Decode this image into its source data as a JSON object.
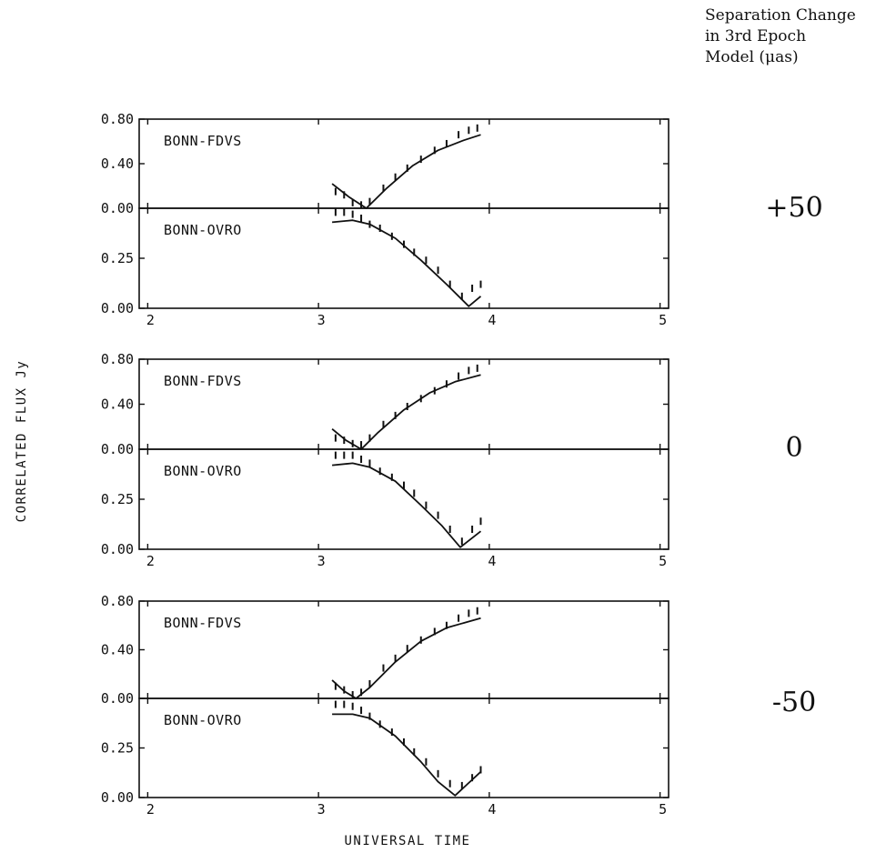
{
  "header": {
    "line1": "Separation Change",
    "line2": "in 3rd Epoch",
    "line3": "Model (μas)"
  },
  "xlabel": "UNIVERSAL TIME",
  "ylabel": "CORRELATED FLUX   Jy",
  "chart_data": {
    "type": "line",
    "x_ticks": [
      "2",
      "3",
      "4",
      "5"
    ],
    "xlim": [
      1.95,
      5.05
    ],
    "groups": [
      {
        "separation_change": "+50",
        "panels": [
          {
            "baseline": "BONN-FDVS",
            "ylim": [
              0,
              0.8
            ],
            "y_ticks": [
              "0.00",
              "0.40",
              "0.80"
            ],
            "model": {
              "x": [
                3.08,
                3.18,
                3.28,
                3.4,
                3.55,
                3.7,
                3.85,
                3.95
              ],
              "y": [
                0.22,
                0.1,
                0.0,
                0.18,
                0.38,
                0.52,
                0.61,
                0.66
              ]
            },
            "data": {
              "x": [
                3.1,
                3.15,
                3.2,
                3.25,
                3.3,
                3.38,
                3.45,
                3.52,
                3.6,
                3.68,
                3.75,
                3.82,
                3.88,
                3.93
              ],
              "y": [
                0.15,
                0.12,
                0.05,
                0.03,
                0.06,
                0.18,
                0.28,
                0.36,
                0.44,
                0.52,
                0.58,
                0.66,
                0.7,
                0.72
              ]
            }
          },
          {
            "baseline": "BONN-OVRO",
            "ylim": [
              0,
              0.5
            ],
            "y_ticks": [
              "0.00",
              "0.25"
            ],
            "model": {
              "x": [
                3.08,
                3.2,
                3.3,
                3.45,
                3.6,
                3.75,
                3.88,
                3.95
              ],
              "y": [
                0.43,
                0.44,
                0.42,
                0.35,
                0.24,
                0.12,
                0.01,
                0.06
              ]
            },
            "data": {
              "x": [
                3.1,
                3.15,
                3.2,
                3.25,
                3.3,
                3.36,
                3.43,
                3.5,
                3.56,
                3.63,
                3.7,
                3.77,
                3.84,
                3.9,
                3.95
              ],
              "y": [
                0.48,
                0.48,
                0.47,
                0.45,
                0.42,
                0.4,
                0.36,
                0.32,
                0.28,
                0.24,
                0.19,
                0.12,
                0.06,
                0.1,
                0.12
              ]
            }
          }
        ]
      },
      {
        "separation_change": "0",
        "panels": [
          {
            "baseline": "BONN-FDVS",
            "ylim": [
              0,
              0.8
            ],
            "y_ticks": [
              "0.00",
              "0.40",
              "0.80"
            ],
            "model": {
              "x": [
                3.08,
                3.16,
                3.25,
                3.35,
                3.5,
                3.65,
                3.8,
                3.95
              ],
              "y": [
                0.18,
                0.08,
                0.0,
                0.15,
                0.35,
                0.5,
                0.6,
                0.66
              ]
            },
            "data": {
              "x": [
                3.1,
                3.15,
                3.2,
                3.25,
                3.3,
                3.38,
                3.45,
                3.52,
                3.6,
                3.68,
                3.75,
                3.82,
                3.88,
                3.93
              ],
              "y": [
                0.1,
                0.08,
                0.05,
                0.04,
                0.1,
                0.22,
                0.3,
                0.38,
                0.45,
                0.52,
                0.58,
                0.65,
                0.7,
                0.72
              ]
            }
          },
          {
            "baseline": "BONN-OVRO",
            "ylim": [
              0,
              0.5
            ],
            "y_ticks": [
              "0.00",
              "0.25"
            ],
            "model": {
              "x": [
                3.08,
                3.2,
                3.3,
                3.45,
                3.6,
                3.72,
                3.83,
                3.95
              ],
              "y": [
                0.42,
                0.43,
                0.41,
                0.34,
                0.22,
                0.12,
                0.01,
                0.09
              ]
            },
            "data": {
              "x": [
                3.1,
                3.15,
                3.2,
                3.25,
                3.3,
                3.36,
                3.43,
                3.5,
                3.56,
                3.63,
                3.7,
                3.77,
                3.84,
                3.9,
                3.95
              ],
              "y": [
                0.47,
                0.47,
                0.47,
                0.45,
                0.43,
                0.39,
                0.36,
                0.32,
                0.28,
                0.22,
                0.17,
                0.1,
                0.04,
                0.1,
                0.14
              ]
            }
          }
        ]
      },
      {
        "separation_change": "-50",
        "panels": [
          {
            "baseline": "BONN-FDVS",
            "ylim": [
              0,
              0.8
            ],
            "y_ticks": [
              "0.00",
              "0.40",
              "0.80"
            ],
            "model": {
              "x": [
                3.08,
                3.15,
                3.22,
                3.3,
                3.45,
                3.6,
                3.75,
                3.95
              ],
              "y": [
                0.15,
                0.06,
                0.0,
                0.09,
                0.3,
                0.47,
                0.58,
                0.66
              ]
            },
            "data": {
              "x": [
                3.1,
                3.15,
                3.2,
                3.25,
                3.3,
                3.38,
                3.45,
                3.52,
                3.6,
                3.68,
                3.75,
                3.82,
                3.88,
                3.93
              ],
              "y": [
                0.1,
                0.07,
                0.03,
                0.05,
                0.12,
                0.25,
                0.33,
                0.41,
                0.48,
                0.55,
                0.6,
                0.66,
                0.7,
                0.72
              ]
            }
          },
          {
            "baseline": "BONN-OVRO",
            "ylim": [
              0,
              0.5
            ],
            "y_ticks": [
              "0.00",
              "0.25"
            ],
            "model": {
              "x": [
                3.08,
                3.2,
                3.3,
                3.45,
                3.6,
                3.7,
                3.8,
                3.95
              ],
              "y": [
                0.42,
                0.42,
                0.4,
                0.31,
                0.18,
                0.08,
                0.01,
                0.13
              ]
            },
            "data": {
              "x": [
                3.1,
                3.15,
                3.2,
                3.25,
                3.3,
                3.36,
                3.43,
                3.5,
                3.56,
                3.63,
                3.7,
                3.77,
                3.84,
                3.9,
                3.95
              ],
              "y": [
                0.47,
                0.47,
                0.46,
                0.44,
                0.41,
                0.37,
                0.33,
                0.28,
                0.23,
                0.18,
                0.12,
                0.07,
                0.06,
                0.1,
                0.14
              ]
            }
          }
        ]
      }
    ]
  }
}
